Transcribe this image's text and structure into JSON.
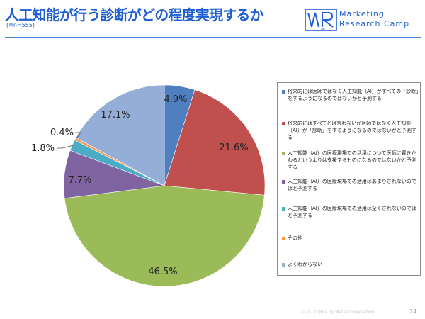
{
  "header": {
    "title": "人工知能が行う診断がどの程度実現するか",
    "sample_note": "(※n=555)"
  },
  "brand": {
    "logo_letters": "MRC",
    "line1": "Marketing",
    "line2": "Research Camp"
  },
  "colors": {
    "title": "#1f5fd1",
    "slices": [
      "#4f7fbf",
      "#c0504d",
      "#9bbb59",
      "#8064a2",
      "#4bacc6",
      "#f79646",
      "#95aed8"
    ]
  },
  "chart_data": {
    "type": "pie",
    "title": "人工知能が行う診断がどの程度実現するか",
    "subtitle": "(※n=555)",
    "start_angle_deg": 0,
    "direction": "clockwise",
    "legend_position": "right",
    "slices": [
      {
        "label": "将来的には医師ではなく人工知能（AI）がすべての「診断」をするようになるのではないかと予測する",
        "value": 4.9,
        "value_label": "4.9%",
        "color": "#4f7fbf"
      },
      {
        "label": "将来的にはすべてとは言わないが医師ではなく人工知能（AI）が「診断」をするようになるのではないかと予測する",
        "value": 21.6,
        "value_label": "21.6%",
        "color": "#c0504d"
      },
      {
        "label": "人工知能（AI）の医療現場での活用について医師に置きかわるというよりは支援するものになるのではないかと予測する",
        "value": 46.5,
        "value_label": "46.5%",
        "color": "#9bbb59"
      },
      {
        "label": "人工知能（AI）の医療現場での活用はあまりされないのではと予測する",
        "value": 7.7,
        "value_label": "7.7%",
        "color": "#8064a2"
      },
      {
        "label": "人工知能（AI）の医療現場での活用は全くされないのではと予測する",
        "value": 1.8,
        "value_label": "1.8%",
        "color": "#4bacc6"
      },
      {
        "label": "その他",
        "value": 0.4,
        "value_label": "0.4%",
        "color": "#f79646"
      },
      {
        "label": "よくわからない",
        "value": 17.1,
        "value_label": "17.1%",
        "color": "#95aed8"
      }
    ]
  },
  "footer": {
    "copyright": "©2017 Qlife by Marks Corporation",
    "page_number": "24"
  }
}
